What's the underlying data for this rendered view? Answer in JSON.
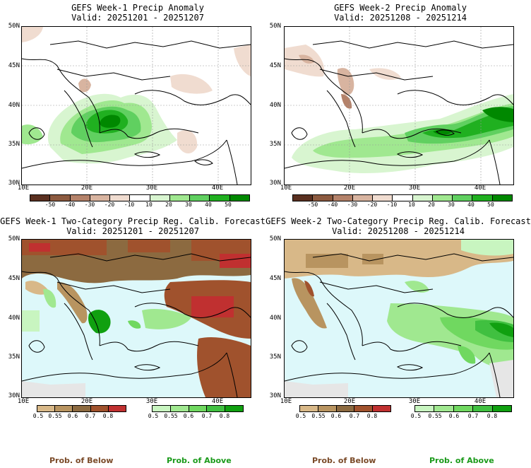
{
  "panels": [
    {
      "title": "GEFS Week-1 Precip Anomaly",
      "valid": "Valid: 20251201 - 20251207"
    },
    {
      "title": "GEFS Week-2 Precip Anomaly",
      "valid": "Valid: 20251208 - 20251214"
    },
    {
      "title": "GEFS Week-1 Two-Category Precip Reg. Calib. Forecast",
      "valid": "Valid: 20251201 - 20251207"
    },
    {
      "title": "GEFS Week-2 Two-Category Precip Reg. Calib. Forecast",
      "valid": "Valid: 20251208 - 20251214"
    }
  ],
  "lat_labels": [
    "50N",
    "45N",
    "40N",
    "35N",
    "30N"
  ],
  "lon_labels": [
    "10E",
    "20E",
    "30E",
    "40E"
  ],
  "anomaly_colorbar": {
    "labels": [
      "-50",
      "-40",
      "-30",
      "-20",
      "-10",
      "10",
      "20",
      "30",
      "40",
      "50"
    ],
    "colors": [
      "#5a3020",
      "#8c5a40",
      "#b4826a",
      "#d8b4a0",
      "#f0dcd0",
      "#ffffff",
      "#d8f5d0",
      "#a0e890",
      "#60d060",
      "#20b020",
      "#008800"
    ]
  },
  "prob_below_colorbar": {
    "labels": [
      "0.5",
      "0.55",
      "0.6",
      "0.7",
      "0.8"
    ],
    "colors": [
      "#d8b888",
      "#b89460",
      "#8c6a40",
      "#a0522d",
      "#c03030"
    ]
  },
  "prob_above_colorbar": {
    "labels": [
      "0.5",
      "0.55",
      "0.6",
      "0.7",
      "0.8"
    ],
    "colors": [
      "#c8f5c0",
      "#a0e890",
      "#70d860",
      "#40c040",
      "#10a010"
    ]
  },
  "legend": {
    "below": "Prob. of Below",
    "above": "Prob. of Above"
  },
  "colors": {
    "below_text": "#7a4a28",
    "above_text": "#1a9a1a",
    "sea_prob": "#ddf8fa",
    "no_data": "#e6e6e6"
  }
}
